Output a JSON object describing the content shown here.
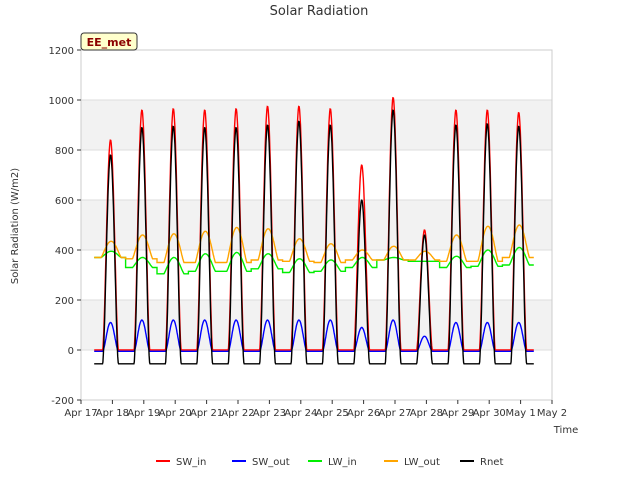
{
  "chart_data": {
    "type": "line",
    "title": "Solar Radiation",
    "xlabel": "Time",
    "ylabel": "Solar Radiation (W/m2)",
    "ylim": [
      -200,
      1200
    ],
    "yticks": [
      -200,
      0,
      200,
      400,
      600,
      800,
      1000,
      1200
    ],
    "xlim_days": [
      17,
      32
    ],
    "xticks": [
      {
        "day": 17,
        "label": "Apr 17"
      },
      {
        "day": 18,
        "label": "Apr 18"
      },
      {
        "day": 19,
        "label": "Apr 19"
      },
      {
        "day": 20,
        "label": "Apr 20"
      },
      {
        "day": 21,
        "label": "Apr 21"
      },
      {
        "day": 22,
        "label": "Apr 22"
      },
      {
        "day": 23,
        "label": "Apr 23"
      },
      {
        "day": 24,
        "label": "Apr 24"
      },
      {
        "day": 25,
        "label": "Apr 25"
      },
      {
        "day": 26,
        "label": "Apr 26"
      },
      {
        "day": 27,
        "label": "Apr 27"
      },
      {
        "day": 28,
        "label": "Apr 28"
      },
      {
        "day": 29,
        "label": "Apr 29"
      },
      {
        "day": 30,
        "label": "Apr 30"
      },
      {
        "day": 31,
        "label": "May 1"
      },
      {
        "day": 32,
        "label": "May 2"
      }
    ],
    "grid": true,
    "legend_position": "bottom",
    "annotation": "EE_met",
    "days": [
      "Apr 17",
      "Apr 18",
      "Apr 19",
      "Apr 20",
      "Apr 21",
      "Apr 22",
      "Apr 23",
      "Apr 24",
      "Apr 25",
      "Apr 26",
      "Apr 27",
      "Apr 28",
      "Apr 29",
      "Apr 30",
      "May 1"
    ],
    "series": [
      {
        "name": "SW_in",
        "color": "#ff0000",
        "night": 0,
        "daily_peak": [
          840,
          960,
          965,
          960,
          965,
          975,
          975,
          965,
          740,
          1010,
          480,
          960,
          960,
          950
        ]
      },
      {
        "name": "SW_out",
        "color": "#0000ff",
        "night": -5,
        "daily_peak": [
          110,
          120,
          120,
          120,
          120,
          120,
          120,
          120,
          90,
          120,
          55,
          110,
          110,
          110
        ]
      },
      {
        "name": "LW_in",
        "color": "#00ee00",
        "night_level": [
          370,
          330,
          305,
          315,
          315,
          325,
          310,
          315,
          330,
          360,
          355,
          330,
          335,
          340
        ],
        "day_level": [
          395,
          370,
          370,
          385,
          390,
          385,
          365,
          360,
          370,
          370,
          355,
          375,
          400,
          410
        ]
      },
      {
        "name": "LW_out",
        "color": "#ffa500",
        "night_level": [
          370,
          365,
          350,
          350,
          350,
          360,
          355,
          350,
          360,
          360,
          360,
          355,
          355,
          370
        ],
        "day_level": [
          435,
          460,
          465,
          475,
          490,
          485,
          445,
          425,
          400,
          415,
          395,
          460,
          495,
          500
        ]
      },
      {
        "name": "Rnet",
        "color": "#000000",
        "night": -55,
        "daily_peak": [
          780,
          890,
          895,
          890,
          890,
          900,
          915,
          900,
          600,
          960,
          460,
          900,
          905,
          895
        ]
      }
    ]
  }
}
